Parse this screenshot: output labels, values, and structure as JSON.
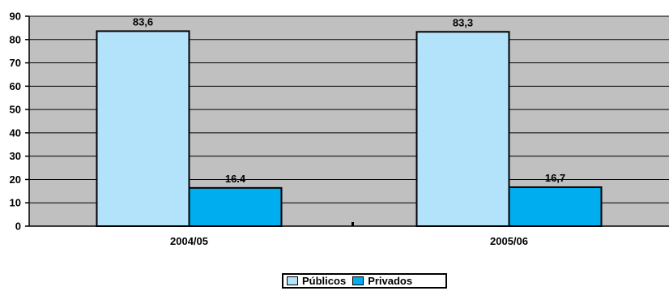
{
  "chart_data": {
    "type": "bar",
    "categories": [
      "2004/05",
      "2005/06"
    ],
    "series": [
      {
        "name": "Públicos",
        "values": [
          83.6,
          83.3
        ],
        "labels": [
          "83,6",
          "83,3"
        ],
        "color": "#b3e3fb"
      },
      {
        "name": "Privados",
        "values": [
          16.4,
          16.7
        ],
        "labels": [
          "16.4",
          "16,7"
        ],
        "color": "#00aeef"
      }
    ],
    "ylim": [
      0,
      90
    ],
    "yticks": [
      0,
      10,
      20,
      30,
      40,
      50,
      60,
      70,
      80,
      90
    ],
    "grid": true,
    "plot_background": "#c0c0c0",
    "legend_position": "bottom-center",
    "title": "",
    "xlabel": "",
    "ylabel": ""
  }
}
